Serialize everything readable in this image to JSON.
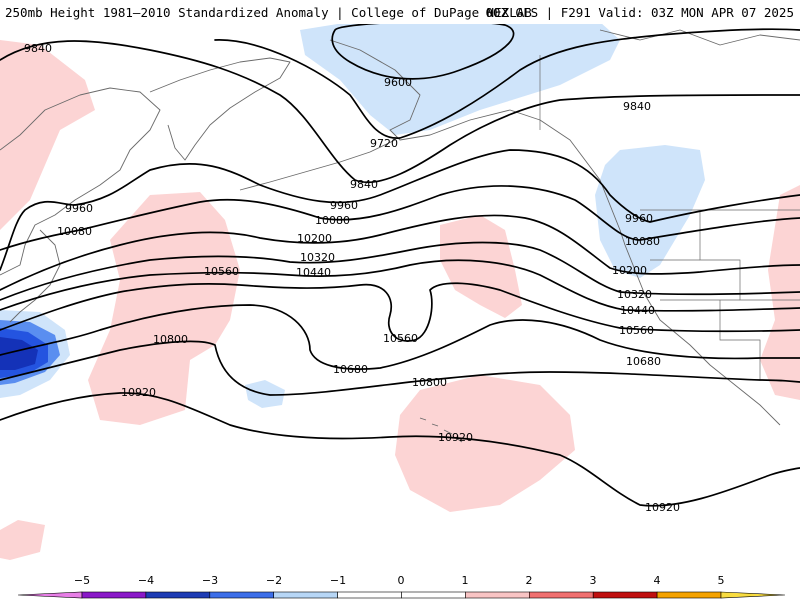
{
  "header": {
    "title_left": "250mb Height 1981–2010 Standardized Anomaly | College of DuPage NEXLAB",
    "title_right": "00Z GFS | F291 Valid: 03Z MON APR 07 2025"
  },
  "colors": {
    "contour": "#000000",
    "coastline": "#6a6a6a",
    "anomaly_pos_1": "#fcd4d4",
    "anomaly_neg_1": "#cfe4fa",
    "anomaly_neg_2": "#5a8ef0",
    "anomaly_neg_3": "#2454e0",
    "anomaly_neg_4": "#1432b8"
  },
  "contour_labels": [
    {
      "id": "l9840a",
      "text": "9840"
    },
    {
      "id": "l9600",
      "text": "9600"
    },
    {
      "id": "l9720",
      "text": "9720"
    },
    {
      "id": "l9840b",
      "text": "9840"
    },
    {
      "id": "l9840c",
      "text": "9840"
    },
    {
      "id": "l9960a",
      "text": "9960"
    },
    {
      "id": "l9960b",
      "text": "9960"
    },
    {
      "id": "l9960c",
      "text": "9960"
    },
    {
      "id": "l10080a",
      "text": "10080"
    },
    {
      "id": "l10080b",
      "text": "10080"
    },
    {
      "id": "l10080c",
      "text": "10080"
    },
    {
      "id": "l10200a",
      "text": "10200"
    },
    {
      "id": "l10200b",
      "text": "10200"
    },
    {
      "id": "l10320a",
      "text": "10320"
    },
    {
      "id": "l10320b",
      "text": "10320"
    },
    {
      "id": "l10440a",
      "text": "10440"
    },
    {
      "id": "l10440b",
      "text": "10440"
    },
    {
      "id": "l10560a",
      "text": "10560"
    },
    {
      "id": "l10560b",
      "text": "10560"
    },
    {
      "id": "l10560c",
      "text": "10560"
    },
    {
      "id": "l10680a",
      "text": "10680"
    },
    {
      "id": "l10680b",
      "text": "10680"
    },
    {
      "id": "l10800a",
      "text": "10800"
    },
    {
      "id": "l10800b",
      "text": "10800"
    },
    {
      "id": "l10920a",
      "text": "10920"
    },
    {
      "id": "l10920b",
      "text": "10920"
    },
    {
      "id": "l10920c",
      "text": "10920"
    }
  ],
  "legend": {
    "ticks": [
      "−5",
      "−4",
      "−3",
      "−2",
      "−1",
      "0",
      "1",
      "2",
      "3",
      "4",
      "5"
    ],
    "bins": [
      "#e77ee6",
      "#8a18c8",
      "#1e3cb4",
      "#3c6ee8",
      "#b7d6f5",
      "#ffffff",
      "#ffffff",
      "#f8c4c4",
      "#f07070",
      "#c01010",
      "#f4a200",
      "#f8dc40"
    ]
  }
}
